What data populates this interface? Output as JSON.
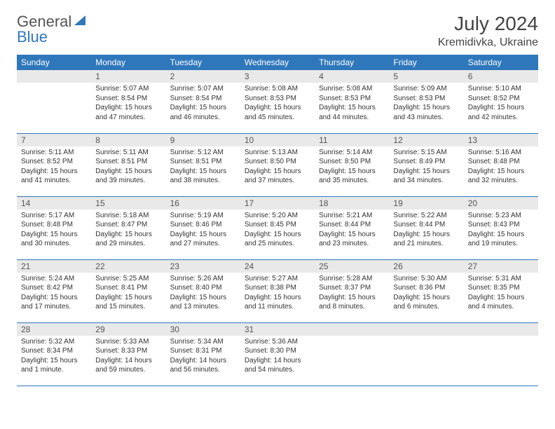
{
  "logo": {
    "text1": "General",
    "text2": "Blue"
  },
  "title": "July 2024",
  "location": "Kremidivka, Ukraine",
  "colors": {
    "header_bg": "#2f77bb",
    "header_text": "#ffffff",
    "daynum_bg": "#e9e9e9",
    "border": "#2f77bb",
    "text": "#333333"
  },
  "weekdays": [
    "Sunday",
    "Monday",
    "Tuesday",
    "Wednesday",
    "Thursday",
    "Friday",
    "Saturday"
  ],
  "weeks": [
    [
      {
        "n": "",
        "sr": "",
        "ss": "",
        "dl": ""
      },
      {
        "n": "1",
        "sr": "Sunrise: 5:07 AM",
        "ss": "Sunset: 8:54 PM",
        "dl": "Daylight: 15 hours and 47 minutes."
      },
      {
        "n": "2",
        "sr": "Sunrise: 5:07 AM",
        "ss": "Sunset: 8:54 PM",
        "dl": "Daylight: 15 hours and 46 minutes."
      },
      {
        "n": "3",
        "sr": "Sunrise: 5:08 AM",
        "ss": "Sunset: 8:53 PM",
        "dl": "Daylight: 15 hours and 45 minutes."
      },
      {
        "n": "4",
        "sr": "Sunrise: 5:08 AM",
        "ss": "Sunset: 8:53 PM",
        "dl": "Daylight: 15 hours and 44 minutes."
      },
      {
        "n": "5",
        "sr": "Sunrise: 5:09 AM",
        "ss": "Sunset: 8:53 PM",
        "dl": "Daylight: 15 hours and 43 minutes."
      },
      {
        "n": "6",
        "sr": "Sunrise: 5:10 AM",
        "ss": "Sunset: 8:52 PM",
        "dl": "Daylight: 15 hours and 42 minutes."
      }
    ],
    [
      {
        "n": "7",
        "sr": "Sunrise: 5:11 AM",
        "ss": "Sunset: 8:52 PM",
        "dl": "Daylight: 15 hours and 41 minutes."
      },
      {
        "n": "8",
        "sr": "Sunrise: 5:11 AM",
        "ss": "Sunset: 8:51 PM",
        "dl": "Daylight: 15 hours and 39 minutes."
      },
      {
        "n": "9",
        "sr": "Sunrise: 5:12 AM",
        "ss": "Sunset: 8:51 PM",
        "dl": "Daylight: 15 hours and 38 minutes."
      },
      {
        "n": "10",
        "sr": "Sunrise: 5:13 AM",
        "ss": "Sunset: 8:50 PM",
        "dl": "Daylight: 15 hours and 37 minutes."
      },
      {
        "n": "11",
        "sr": "Sunrise: 5:14 AM",
        "ss": "Sunset: 8:50 PM",
        "dl": "Daylight: 15 hours and 35 minutes."
      },
      {
        "n": "12",
        "sr": "Sunrise: 5:15 AM",
        "ss": "Sunset: 8:49 PM",
        "dl": "Daylight: 15 hours and 34 minutes."
      },
      {
        "n": "13",
        "sr": "Sunrise: 5:16 AM",
        "ss": "Sunset: 8:48 PM",
        "dl": "Daylight: 15 hours and 32 minutes."
      }
    ],
    [
      {
        "n": "14",
        "sr": "Sunrise: 5:17 AM",
        "ss": "Sunset: 8:48 PM",
        "dl": "Daylight: 15 hours and 30 minutes."
      },
      {
        "n": "15",
        "sr": "Sunrise: 5:18 AM",
        "ss": "Sunset: 8:47 PM",
        "dl": "Daylight: 15 hours and 29 minutes."
      },
      {
        "n": "16",
        "sr": "Sunrise: 5:19 AM",
        "ss": "Sunset: 8:46 PM",
        "dl": "Daylight: 15 hours and 27 minutes."
      },
      {
        "n": "17",
        "sr": "Sunrise: 5:20 AM",
        "ss": "Sunset: 8:45 PM",
        "dl": "Daylight: 15 hours and 25 minutes."
      },
      {
        "n": "18",
        "sr": "Sunrise: 5:21 AM",
        "ss": "Sunset: 8:44 PM",
        "dl": "Daylight: 15 hours and 23 minutes."
      },
      {
        "n": "19",
        "sr": "Sunrise: 5:22 AM",
        "ss": "Sunset: 8:44 PM",
        "dl": "Daylight: 15 hours and 21 minutes."
      },
      {
        "n": "20",
        "sr": "Sunrise: 5:23 AM",
        "ss": "Sunset: 8:43 PM",
        "dl": "Daylight: 15 hours and 19 minutes."
      }
    ],
    [
      {
        "n": "21",
        "sr": "Sunrise: 5:24 AM",
        "ss": "Sunset: 8:42 PM",
        "dl": "Daylight: 15 hours and 17 minutes."
      },
      {
        "n": "22",
        "sr": "Sunrise: 5:25 AM",
        "ss": "Sunset: 8:41 PM",
        "dl": "Daylight: 15 hours and 15 minutes."
      },
      {
        "n": "23",
        "sr": "Sunrise: 5:26 AM",
        "ss": "Sunset: 8:40 PM",
        "dl": "Daylight: 15 hours and 13 minutes."
      },
      {
        "n": "24",
        "sr": "Sunrise: 5:27 AM",
        "ss": "Sunset: 8:38 PM",
        "dl": "Daylight: 15 hours and 11 minutes."
      },
      {
        "n": "25",
        "sr": "Sunrise: 5:28 AM",
        "ss": "Sunset: 8:37 PM",
        "dl": "Daylight: 15 hours and 8 minutes."
      },
      {
        "n": "26",
        "sr": "Sunrise: 5:30 AM",
        "ss": "Sunset: 8:36 PM",
        "dl": "Daylight: 15 hours and 6 minutes."
      },
      {
        "n": "27",
        "sr": "Sunrise: 5:31 AM",
        "ss": "Sunset: 8:35 PM",
        "dl": "Daylight: 15 hours and 4 minutes."
      }
    ],
    [
      {
        "n": "28",
        "sr": "Sunrise: 5:32 AM",
        "ss": "Sunset: 8:34 PM",
        "dl": "Daylight: 15 hours and 1 minute."
      },
      {
        "n": "29",
        "sr": "Sunrise: 5:33 AM",
        "ss": "Sunset: 8:33 PM",
        "dl": "Daylight: 14 hours and 59 minutes."
      },
      {
        "n": "30",
        "sr": "Sunrise: 5:34 AM",
        "ss": "Sunset: 8:31 PM",
        "dl": "Daylight: 14 hours and 56 minutes."
      },
      {
        "n": "31",
        "sr": "Sunrise: 5:36 AM",
        "ss": "Sunset: 8:30 PM",
        "dl": "Daylight: 14 hours and 54 minutes."
      },
      {
        "n": "",
        "sr": "",
        "ss": "",
        "dl": ""
      },
      {
        "n": "",
        "sr": "",
        "ss": "",
        "dl": ""
      },
      {
        "n": "",
        "sr": "",
        "ss": "",
        "dl": ""
      }
    ]
  ]
}
